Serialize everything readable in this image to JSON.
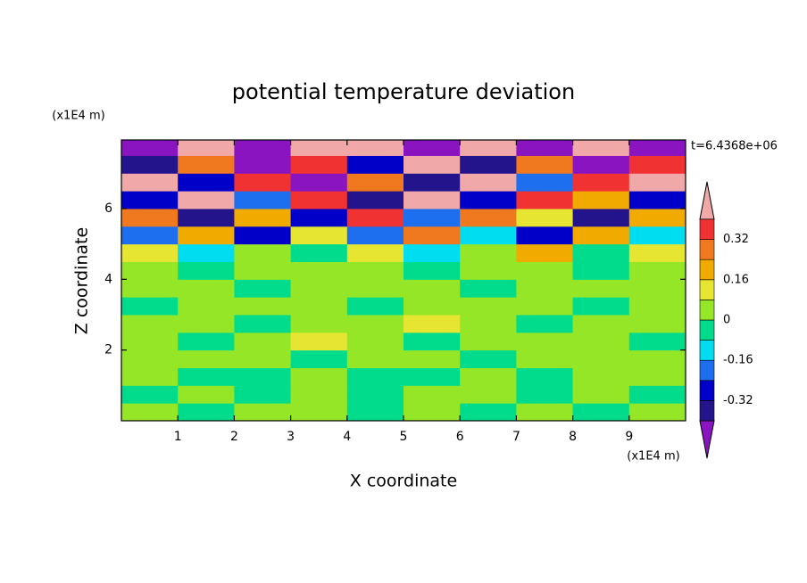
{
  "chart_data": {
    "type": "contour",
    "title": "potential temperature deviation",
    "x_label": "X coordinate",
    "y_label": "Z coordinate",
    "x_unit": "(x1E4 m)",
    "y_unit": "(x1E4 m)",
    "annotation": "t=6.4368e+06",
    "xlim": [
      0,
      10
    ],
    "ylim": [
      0,
      7.94
    ],
    "xticks": [
      1,
      2,
      3,
      4,
      5,
      6,
      7,
      8,
      9
    ],
    "yticks": [
      2,
      4,
      6
    ],
    "x": [
      0.5,
      1.5,
      2.5,
      3.5,
      4.5,
      5.5,
      6.5,
      7.5,
      8.5,
      9.5
    ],
    "z": [
      0.25,
      0.75,
      1.25,
      1.75,
      2.25,
      2.75,
      3.25,
      3.75,
      4.25,
      4.75,
      5.25,
      5.75,
      6.25,
      6.75,
      7.25,
      7.75
    ],
    "values": [
      [
        0.04,
        -0.04,
        0.04,
        0.04,
        -0.04,
        0.04,
        -0.04,
        0.04,
        -0.04,
        0.04
      ],
      [
        -0.04,
        0.04,
        -0.04,
        0.04,
        -0.04,
        0.04,
        0.04,
        -0.04,
        0.04,
        -0.04
      ],
      [
        0.04,
        -0.04,
        -0.04,
        0.04,
        -0.04,
        -0.04,
        0.04,
        -0.04,
        0.04,
        0.04
      ],
      [
        0.04,
        0.04,
        0.04,
        -0.04,
        0.04,
        0.04,
        -0.04,
        0.04,
        0.04,
        0.04
      ],
      [
        0.04,
        -0.04,
        0.04,
        0.12,
        0.04,
        -0.04,
        0.04,
        0.04,
        0.04,
        -0.04
      ],
      [
        0.04,
        0.04,
        -0.04,
        0.04,
        0.04,
        0.12,
        0.04,
        -0.04,
        0.04,
        0.04
      ],
      [
        -0.04,
        0.04,
        0.04,
        0.04,
        -0.04,
        0.04,
        0.04,
        0.04,
        -0.04,
        0.04
      ],
      [
        0.04,
        0.04,
        -0.04,
        0.04,
        0.04,
        0.04,
        -0.04,
        0.04,
        0.04,
        0.04
      ],
      [
        0.04,
        -0.04,
        0.04,
        0.04,
        0.04,
        -0.04,
        0.04,
        0.04,
        -0.04,
        0.04
      ],
      [
        0.12,
        -0.12,
        0.04,
        -0.04,
        0.12,
        -0.12,
        0.04,
        0.2,
        -0.04,
        0.12
      ],
      [
        -0.2,
        0.2,
        -0.28,
        0.12,
        -0.2,
        0.28,
        -0.12,
        -0.28,
        0.2,
        -0.12
      ],
      [
        0.28,
        -0.36,
        0.2,
        -0.28,
        0.36,
        -0.2,
        0.28,
        0.12,
        -0.36,
        0.2
      ],
      [
        -0.28,
        0.45,
        -0.2,
        0.36,
        -0.36,
        0.45,
        -0.28,
        0.36,
        0.2,
        -0.28
      ],
      [
        0.45,
        -0.28,
        0.36,
        -0.45,
        0.28,
        -0.36,
        0.45,
        -0.2,
        0.36,
        0.45
      ],
      [
        -0.36,
        0.28,
        -0.45,
        0.36,
        -0.28,
        0.45,
        -0.36,
        0.28,
        -0.45,
        0.36
      ],
      [
        -0.5,
        0.45,
        -0.5,
        0.45,
        0.45,
        -0.5,
        0.45,
        -0.5,
        0.45,
        -0.5
      ]
    ],
    "levels": [
      -0.4,
      -0.32,
      -0.24,
      -0.16,
      -0.08,
      0,
      0.08,
      0.16,
      0.24,
      0.32,
      0.4
    ],
    "colors": [
      "#8a14c0",
      "#24148c",
      "#0000c8",
      "#1e6ef0",
      "#00dcf0",
      "#00dc8c",
      "#96e628",
      "#e6e632",
      "#f0aa00",
      "#f0781e",
      "#f03232",
      "#f0a8a8"
    ],
    "colorbar_ticks": [
      -0.32,
      -0.16,
      0,
      0.16,
      0.32
    ]
  }
}
